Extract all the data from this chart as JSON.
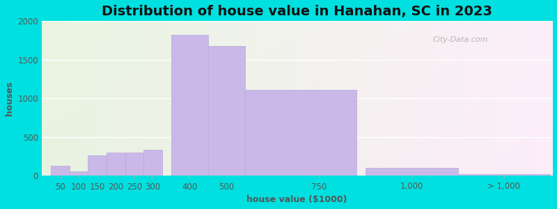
{
  "title": "Distribution of house value in Hanahan, SC in 2023",
  "xlabel": "house value ($1000)",
  "ylabel": "houses",
  "bar_color": "#c9b8e8",
  "bar_edgecolor": "#b8a8d8",
  "background_outer": "#00e0e0",
  "ylim": [
    0,
    2000
  ],
  "yticks": [
    0,
    500,
    1000,
    1500,
    2000
  ],
  "title_fontsize": 14,
  "axis_fontsize": 9,
  "tick_fontsize": 8.5,
  "watermark_text": "City-Data.com",
  "bins_left": [
    25,
    75,
    125,
    175,
    225,
    275,
    350,
    450,
    550,
    875,
    1125
  ],
  "bins_width": [
    50,
    50,
    50,
    50,
    50,
    50,
    100,
    100,
    300,
    250,
    250
  ],
  "bar_heights": [
    130,
    55,
    265,
    300,
    305,
    335,
    1820,
    1680,
    1110,
    100,
    20
  ],
  "xtick_positions": [
    50,
    100,
    150,
    200,
    250,
    300,
    400,
    500,
    750,
    1000,
    1250
  ],
  "xtick_labels": [
    "50",
    "100",
    "150",
    "200",
    "250",
    "300",
    "400",
    "500",
    "750",
    "1,000",
    "> 1,000"
  ],
  "xlim": [
    0,
    1380
  ]
}
